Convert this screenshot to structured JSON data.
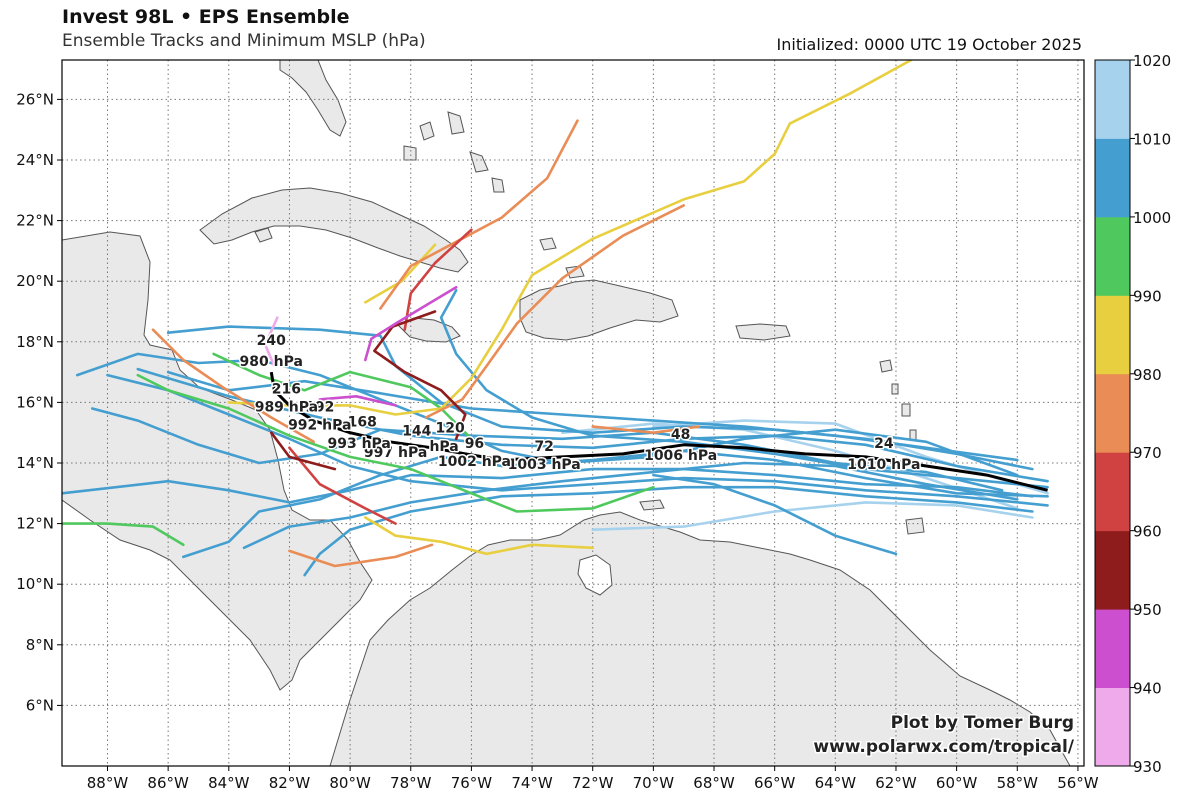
{
  "header": {
    "title": "Invest 98L • EPS Ensemble",
    "subtitle": "Ensemble Tracks and Minimum MSLP (hPa)",
    "initialized": "Initialized: 0000 UTC 19 October 2025"
  },
  "credit": {
    "line1": "Plot by Tomer Burg",
    "line2": "www.polarwx.com/tropical/"
  },
  "map": {
    "lon_range": [
      -89.5,
      -55.8
    ],
    "lat_range": [
      4.0,
      27.3
    ],
    "lon_ticks": [
      "88°W",
      "86°W",
      "84°W",
      "82°W",
      "80°W",
      "78°W",
      "76°W",
      "74°W",
      "72°W",
      "70°W",
      "68°W",
      "66°W",
      "64°W",
      "62°W",
      "60°W",
      "58°W",
      "56°W"
    ],
    "lat_ticks": [
      "6°N",
      "8°N",
      "10°N",
      "12°N",
      "14°N",
      "16°N",
      "18°N",
      "20°N",
      "22°N",
      "24°N",
      "26°N"
    ],
    "grid": "dotted"
  },
  "colorbar": {
    "labels": [
      "930",
      "940",
      "950",
      "960",
      "970",
      "980",
      "990",
      "1000",
      "1010",
      "1020"
    ],
    "colors": [
      "#eeaaea",
      "#cc4fcf",
      "#8e1c1c",
      "#d04242",
      "#ea8c55",
      "#e8cf40",
      "#4fc95e",
      "#449fd0",
      "#a6d2ee"
    ]
  },
  "mean_track": {
    "points": [
      [
        -57,
        13.1
      ],
      [
        -59,
        13.6
      ],
      [
        -61,
        13.9
      ],
      [
        -63,
        14.2
      ],
      [
        -65,
        14.3
      ],
      [
        -67,
        14.5
      ],
      [
        -69,
        14.6
      ],
      [
        -71,
        14.3
      ],
      [
        -73,
        14.2
      ],
      [
        -75,
        14.1
      ],
      [
        -76.2,
        14.3
      ],
      [
        -77.3,
        14.5
      ],
      [
        -78.7,
        14.7
      ],
      [
        -80,
        15.0
      ],
      [
        -81.2,
        15.4
      ],
      [
        -82,
        15.9
      ],
      [
        -82.5,
        16.4
      ],
      [
        -82.6,
        17.0
      ]
    ],
    "labels": [
      {
        "lon": -62.4,
        "lat": 14.5,
        "text": "24"
      },
      {
        "lon": -62.4,
        "lat": 13.8,
        "text": "1010 hPa"
      },
      {
        "lon": -69.1,
        "lat": 14.8,
        "text": "48"
      },
      {
        "lon": -69.1,
        "lat": 14.1,
        "text": "1006 hPa"
      },
      {
        "lon": -73.6,
        "lat": 14.4,
        "text": "72"
      },
      {
        "lon": -73.6,
        "lat": 13.8,
        "text": "1003 hPa"
      },
      {
        "lon": -75.9,
        "lat": 14.5,
        "text": "96"
      },
      {
        "lon": -75.9,
        "lat": 13.9,
        "text": "1002 hPa"
      },
      {
        "lon": -76.7,
        "lat": 15.0,
        "text": "120"
      },
      {
        "lon": -76.9,
        "lat": 14.4,
        "text": "hPa"
      },
      {
        "lon": -77.8,
        "lat": 14.9,
        "text": "144"
      },
      {
        "lon": -78.5,
        "lat": 14.2,
        "text": "997 hPa"
      },
      {
        "lon": -79.6,
        "lat": 15.2,
        "text": "168"
      },
      {
        "lon": -79.7,
        "lat": 14.5,
        "text": "993 hPa"
      },
      {
        "lon": -81.0,
        "lat": 15.7,
        "text": "192"
      },
      {
        "lon": -81.0,
        "lat": 15.1,
        "text": "992 hPa"
      },
      {
        "lon": -82.1,
        "lat": 16.3,
        "text": "216"
      },
      {
        "lon": -82.1,
        "lat": 15.7,
        "text": "989 hPa"
      },
      {
        "lon": -82.6,
        "lat": 17.9,
        "text": "240"
      },
      {
        "lon": -82.6,
        "lat": 17.2,
        "text": "980 hPa"
      }
    ]
  },
  "ensemble_tracks": [
    {
      "color": "#a6d2ee",
      "points": [
        [
          -57,
          13
        ],
        [
          -61,
          14.2
        ],
        [
          -64,
          15.3
        ],
        [
          -67,
          15.4
        ],
        [
          -70,
          15.2
        ]
      ]
    },
    {
      "color": "#a6d2ee",
      "points": [
        [
          -57.5,
          12.2
        ],
        [
          -60,
          12.6
        ],
        [
          -63,
          12.7
        ],
        [
          -66,
          12.4
        ],
        [
          -69,
          11.9
        ],
        [
          -72,
          11.8
        ]
      ]
    },
    {
      "color": "#a6d2ee",
      "points": [
        [
          -58,
          12.5
        ],
        [
          -61,
          13.5
        ],
        [
          -64,
          14.4
        ],
        [
          -67,
          15.1
        ],
        [
          -70,
          15.3
        ],
        [
          -73,
          15.0
        ]
      ]
    },
    {
      "color": "#449fd0",
      "points": [
        [
          -57,
          13.4
        ],
        [
          -60,
          13.9
        ],
        [
          -63,
          14.6
        ],
        [
          -66,
          14.9
        ],
        [
          -69,
          14.8
        ],
        [
          -72,
          14.5
        ],
        [
          -75,
          14.6
        ],
        [
          -78,
          14.9
        ],
        [
          -81,
          15.5
        ],
        [
          -84,
          16.2
        ],
        [
          -87,
          17.1
        ]
      ]
    },
    {
      "color": "#449fd0",
      "points": [
        [
          -57.5,
          12.9
        ],
        [
          -60,
          13.2
        ],
        [
          -63,
          13.3
        ],
        [
          -66,
          13.6
        ],
        [
          -69,
          13.8
        ],
        [
          -72,
          13.8
        ],
        [
          -75,
          13.5
        ],
        [
          -78,
          13.6
        ],
        [
          -80,
          13.1
        ],
        [
          -82,
          12.7
        ],
        [
          -84,
          13.1
        ],
        [
          -86,
          13.4
        ],
        [
          -89.5,
          13.0
        ]
      ]
    },
    {
      "color": "#449fd0",
      "points": [
        [
          -58,
          13.6
        ],
        [
          -61,
          14.7
        ],
        [
          -64,
          15.1
        ],
        [
          -67,
          14.8
        ],
        [
          -70,
          14.2
        ],
        [
          -73,
          14.0
        ],
        [
          -75,
          14.4
        ],
        [
          -77,
          15.3
        ],
        [
          -79,
          16.1
        ],
        [
          -81,
          16.9
        ],
        [
          -83,
          17.4
        ],
        [
          -85,
          17.3
        ],
        [
          -87,
          17.6
        ],
        [
          -89,
          16.9
        ]
      ]
    },
    {
      "color": "#449fd0",
      "points": [
        [
          -57,
          12.9
        ],
        [
          -60,
          13.0
        ],
        [
          -63,
          13.5
        ],
        [
          -66,
          14.1
        ],
        [
          -69,
          14.4
        ],
        [
          -72,
          14.1
        ],
        [
          -75,
          13.9
        ],
        [
          -77,
          14.2
        ],
        [
          -79,
          13.6
        ],
        [
          -81,
          12.8
        ],
        [
          -83,
          12.4
        ],
        [
          -84,
          11.4
        ],
        [
          -85.5,
          10.9
        ]
      ]
    },
    {
      "color": "#449fd0",
      "points": [
        [
          -57.5,
          13.8
        ],
        [
          -60,
          14.3
        ],
        [
          -63,
          14.8
        ],
        [
          -66,
          15.1
        ],
        [
          -69,
          15.2
        ],
        [
          -72,
          15.0
        ],
        [
          -75,
          15.2
        ],
        [
          -77,
          16.0
        ],
        [
          -78.5,
          17.2
        ],
        [
          -79,
          18.2
        ],
        [
          -81,
          18.4
        ],
        [
          -84,
          18.5
        ],
        [
          -86,
          18.3
        ]
      ]
    },
    {
      "color": "#449fd0",
      "points": [
        [
          -58,
          12.8
        ],
        [
          -61,
          13.3
        ],
        [
          -64,
          13.9
        ],
        [
          -67,
          14.0
        ],
        [
          -70,
          13.7
        ],
        [
          -73,
          13.4
        ],
        [
          -75.5,
          13.1
        ],
        [
          -78,
          12.7
        ],
        [
          -80,
          12.2
        ],
        [
          -82,
          11.9
        ],
        [
          -83.5,
          11.2
        ]
      ]
    },
    {
      "color": "#449fd0",
      "points": [
        [
          -57,
          13.2
        ],
        [
          -60,
          13.5
        ],
        [
          -63,
          13.8
        ],
        [
          -66,
          14.3
        ],
        [
          -69,
          14.7
        ],
        [
          -72,
          14.9
        ],
        [
          -74,
          15.5
        ],
        [
          -75.5,
          16.4
        ],
        [
          -76.5,
          17.6
        ],
        [
          -77,
          18.8
        ],
        [
          -76.5,
          19.7
        ]
      ]
    },
    {
      "color": "#449fd0",
      "points": [
        [
          -58.5,
          13.1
        ],
        [
          -61,
          13.7
        ],
        [
          -64,
          14.0
        ],
        [
          -67,
          14.6
        ],
        [
          -70,
          15.0
        ],
        [
          -73,
          14.8
        ],
        [
          -76,
          14.9
        ],
        [
          -79,
          15.1
        ],
        [
          -81,
          14.3
        ],
        [
          -83,
          14.0
        ],
        [
          -85,
          14.6
        ],
        [
          -87,
          15.4
        ],
        [
          -88.5,
          15.8
        ]
      ]
    },
    {
      "color": "#449fd0",
      "points": [
        [
          -57,
          12.6
        ],
        [
          -60,
          12.9
        ],
        [
          -63,
          13.1
        ],
        [
          -66,
          13.4
        ],
        [
          -69,
          13.5
        ],
        [
          -72,
          13.3
        ],
        [
          -75,
          13.1
        ],
        [
          -78,
          13.4
        ],
        [
          -80,
          13.9
        ],
        [
          -82,
          14.8
        ],
        [
          -84,
          15.6
        ],
        [
          -86,
          16.4
        ],
        [
          -88,
          16.9
        ]
      ]
    },
    {
      "color": "#449fd0",
      "points": [
        [
          -58,
          14.1
        ],
        [
          -61,
          14.5
        ],
        [
          -64,
          14.9
        ],
        [
          -67,
          15.2
        ],
        [
          -70,
          15.4
        ],
        [
          -73,
          15.6
        ],
        [
          -76,
          15.8
        ],
        [
          -79,
          16.3
        ],
        [
          -81.5,
          16.7
        ],
        [
          -84,
          16.4
        ],
        [
          -86,
          17.0
        ]
      ]
    },
    {
      "color": "#449fd0",
      "points": [
        [
          -57.5,
          12.4
        ],
        [
          -60,
          12.7
        ],
        [
          -63,
          12.9
        ],
        [
          -66,
          13.2
        ],
        [
          -69,
          13.2
        ],
        [
          -72,
          13.0
        ],
        [
          -75,
          12.9
        ],
        [
          -78,
          12.4
        ],
        [
          -80,
          11.8
        ],
        [
          -81,
          11.0
        ],
        [
          -81.5,
          10.3
        ]
      ]
    },
    {
      "color": "#449fd0",
      "points": [
        [
          -62,
          11.0
        ],
        [
          -64,
          11.6
        ],
        [
          -66,
          12.6
        ],
        [
          -68,
          13.3
        ],
        [
          -70,
          13.6
        ]
      ]
    },
    {
      "color": "#4fc95e",
      "points": [
        [
          -70,
          13.2
        ],
        [
          -72,
          12.5
        ],
        [
          -74.5,
          12.4
        ],
        [
          -76,
          13.0
        ],
        [
          -78,
          13.8
        ],
        [
          -80,
          14.2
        ],
        [
          -82,
          14.9
        ],
        [
          -84,
          15.8
        ],
        [
          -86,
          16.4
        ],
        [
          -87,
          16.9
        ]
      ]
    },
    {
      "color": "#4fc95e",
      "points": [
        [
          -76,
          14.8
        ],
        [
          -77,
          15.8
        ],
        [
          -78,
          16.5
        ],
        [
          -80,
          17.0
        ],
        [
          -81.5,
          16.4
        ],
        [
          -83,
          16.9
        ],
        [
          -84.5,
          17.6
        ]
      ]
    },
    {
      "color": "#4fc95e",
      "points": [
        [
          -89.5,
          12.0
        ],
        [
          -88,
          12.0
        ],
        [
          -86.5,
          11.9
        ],
        [
          -85.5,
          11.3
        ]
      ]
    },
    {
      "color": "#e8cf40",
      "points": [
        [
          -61.5,
          27.3
        ],
        [
          -63.5,
          26.2
        ],
        [
          -65.5,
          25.2
        ],
        [
          -66,
          24.2
        ],
        [
          -67,
          23.3
        ],
        [
          -69,
          22.7
        ],
        [
          -72,
          21.4
        ],
        [
          -74,
          20.2
        ],
        [
          -75,
          18.4
        ],
        [
          -76,
          16.8
        ],
        [
          -77,
          15.8
        ],
        [
          -78.5,
          15.6
        ],
        [
          -80,
          15.9
        ],
        [
          -82,
          15.9
        ],
        [
          -84,
          16.0
        ]
      ]
    },
    {
      "color": "#e8cf40",
      "points": [
        [
          -72,
          11.2
        ],
        [
          -74,
          11.3
        ],
        [
          -75.5,
          11.0
        ],
        [
          -77,
          11.4
        ],
        [
          -78.5,
          11.6
        ],
        [
          -79.5,
          12.2
        ]
      ]
    },
    {
      "color": "#e8cf40",
      "points": [
        [
          -77.2,
          21.2
        ],
        [
          -78.3,
          20.0
        ],
        [
          -79.5,
          19.3
        ]
      ]
    },
    {
      "color": "#ea8c55",
      "points": [
        [
          -69,
          22.5
        ],
        [
          -71,
          21.5
        ],
        [
          -73,
          20.1
        ],
        [
          -74.5,
          18.6
        ],
        [
          -75.5,
          17.2
        ],
        [
          -76.3,
          16.1
        ],
        [
          -77.5,
          15.5
        ]
      ]
    },
    {
      "color": "#ea8c55",
      "points": [
        [
          -72.5,
          25.3
        ],
        [
          -73.5,
          23.4
        ],
        [
          -75,
          22.1
        ],
        [
          -76.5,
          21.3
        ],
        [
          -78,
          20.5
        ],
        [
          -79,
          19.1
        ]
      ]
    },
    {
      "color": "#ea8c55",
      "points": [
        [
          -86.5,
          18.4
        ],
        [
          -85.5,
          17.4
        ],
        [
          -84.2,
          16.5
        ],
        [
          -82.6,
          15.5
        ],
        [
          -81.2,
          14.7
        ]
      ]
    },
    {
      "color": "#ea8c55",
      "points": [
        [
          -82,
          11.1
        ],
        [
          -80.5,
          10.6
        ],
        [
          -78.5,
          10.9
        ],
        [
          -77.3,
          11.3
        ]
      ]
    },
    {
      "color": "#ea8c55",
      "points": [
        [
          -72,
          15.2
        ],
        [
          -70,
          15.0
        ],
        [
          -68.5,
          15.2
        ]
      ]
    },
    {
      "color": "#d04242",
      "points": [
        [
          -76,
          21.7
        ],
        [
          -77.2,
          20.6
        ],
        [
          -78,
          19.6
        ],
        [
          -78.2,
          18.4
        ]
      ]
    },
    {
      "color": "#d04242",
      "points": [
        [
          -82,
          14.5
        ],
        [
          -81,
          13.3
        ],
        [
          -79.5,
          12.5
        ],
        [
          -78.5,
          12.0
        ]
      ]
    },
    {
      "color": "#8e1c1c",
      "points": [
        [
          -77.2,
          19.0
        ],
        [
          -78.6,
          18.5
        ],
        [
          -79.2,
          17.7
        ],
        [
          -78.2,
          17.0
        ],
        [
          -77.0,
          16.4
        ],
        [
          -76.2,
          15.6
        ],
        [
          -76.5,
          14.8
        ]
      ]
    },
    {
      "color": "#8e1c1c",
      "points": [
        [
          -82.6,
          15.0
        ],
        [
          -82.0,
          14.2
        ],
        [
          -80.5,
          13.8
        ]
      ]
    },
    {
      "color": "#cc4fcf",
      "points": [
        [
          -76.5,
          19.8
        ],
        [
          -77.5,
          19.2
        ],
        [
          -78.5,
          18.6
        ],
        [
          -79.3,
          18.1
        ],
        [
          -79.5,
          17.4
        ]
      ]
    },
    {
      "color": "#cc4fcf",
      "points": [
        [
          -78.5,
          15.9
        ],
        [
          -79.8,
          16.2
        ],
        [
          -81,
          16.1
        ]
      ]
    },
    {
      "color": "#eeaaea",
      "points": [
        [
          -82.4,
          18.8
        ],
        [
          -82.8,
          17.9
        ],
        [
          -82.5,
          17.2
        ]
      ]
    }
  ]
}
